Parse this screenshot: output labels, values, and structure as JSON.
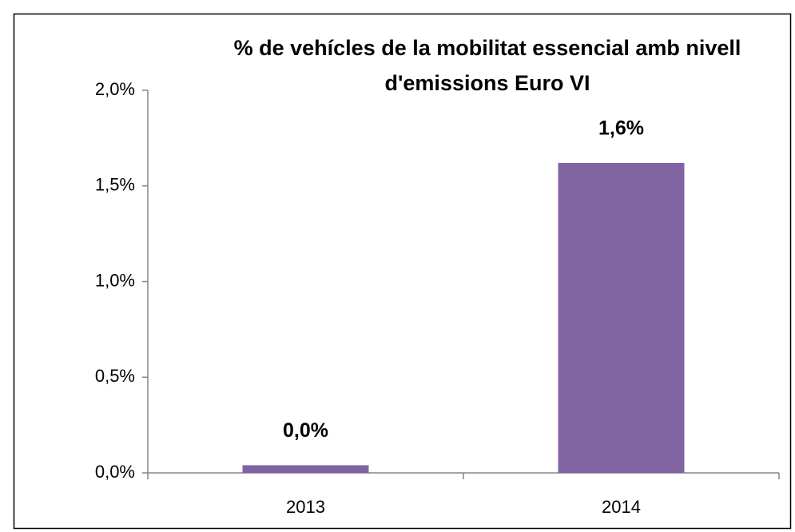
{
  "chart_data": {
    "type": "bar",
    "title": "% de vehícles de la mobilitat essencial amb nivell d'emissions Euro VI",
    "categories": [
      "2013",
      "2014"
    ],
    "values": [
      0.04,
      1.62
    ],
    "value_labels": [
      "0,0%",
      "1,6%"
    ],
    "color": "#8064a2",
    "ylim": [
      0,
      2
    ],
    "yticks": [
      {
        "value": 0,
        "label": "0,0%"
      },
      {
        "value": 0.5,
        "label": "0,5%"
      },
      {
        "value": 1,
        "label": "1,0%"
      },
      {
        "value": 1.5,
        "label": "1,5%"
      },
      {
        "value": 2,
        "label": "2,0%"
      }
    ],
    "grid": false
  }
}
